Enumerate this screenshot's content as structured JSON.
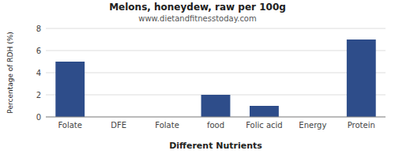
{
  "chart_data": {
    "type": "bar",
    "title": "Melons, honeydew, raw per 100g",
    "subtitle": "www.dietandfitnesstoday.com",
    "xlabel": "Different Nutrients",
    "ylabel": "Percentage of RDH (%)",
    "categories": [
      "Folate",
      "DFE",
      "Folate",
      "food",
      "Folic acid",
      "Energy",
      "Protein"
    ],
    "values": [
      5.0,
      0.0,
      0.0,
      2.0,
      1.0,
      0.0,
      7.0
    ],
    "color": "#2e4d8a",
    "ylim": [
      0,
      8
    ],
    "yticks": [
      0,
      2,
      4,
      6,
      8
    ],
    "grid": true
  }
}
